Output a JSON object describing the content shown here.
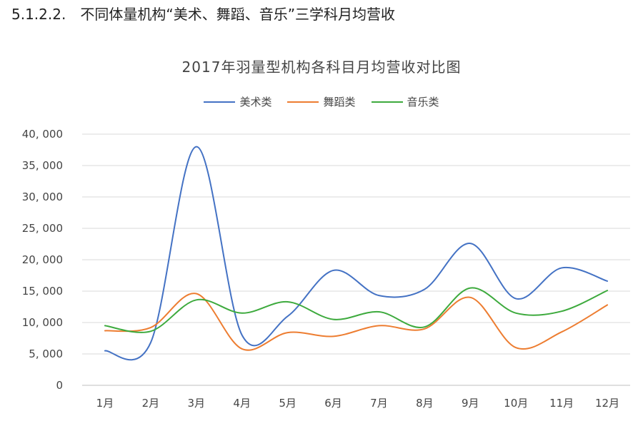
{
  "heading": {
    "number": "5.1.2.2.",
    "text": "不同体量机构“美术、舞蹈、音乐”三学科月均营收"
  },
  "chart_data": {
    "type": "line",
    "title": "2017年羽量型机构各科目月均营收对比图",
    "categories": [
      "1月",
      "2月",
      "3月",
      "4月",
      "5月",
      "6月",
      "7月",
      "8月",
      "9月",
      "10月",
      "11月",
      "12月"
    ],
    "y_ticks": [
      "0",
      "5, 000",
      "10, 000",
      "15, 000",
      "20, 000",
      "25, 000",
      "30, 000",
      "35, 000",
      "40, 000"
    ],
    "ylim": [
      0,
      40000
    ],
    "grid": true,
    "legend_position": "top",
    "series": [
      {
        "name": "美术类",
        "color": "#4472c4",
        "values": [
          5500,
          6800,
          38000,
          8000,
          11000,
          18300,
          14300,
          15300,
          22600,
          13800,
          18700,
          16600
        ]
      },
      {
        "name": "舞蹈类",
        "color": "#ed7d31",
        "values": [
          8700,
          9200,
          14600,
          5800,
          8400,
          7800,
          9500,
          9000,
          14000,
          6000,
          8500,
          12800
        ]
      },
      {
        "name": "音乐类",
        "color": "#3daa3d",
        "values": [
          9500,
          8600,
          13600,
          11500,
          13300,
          10500,
          11700,
          9300,
          15500,
          11500,
          11800,
          15100
        ]
      }
    ]
  }
}
